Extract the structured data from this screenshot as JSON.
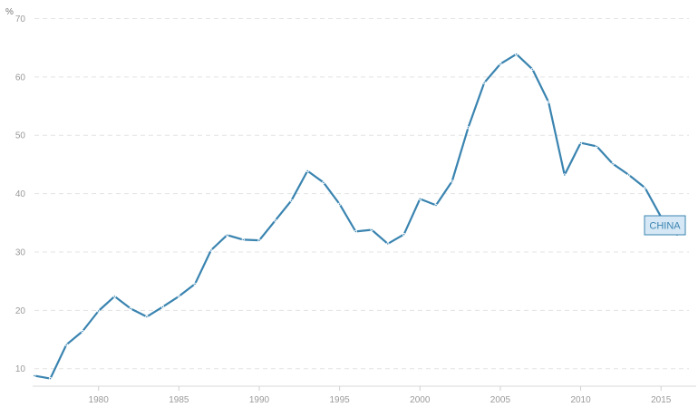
{
  "chart_data": {
    "type": "line",
    "unit_label": "%",
    "x": [
      1976,
      1977,
      1978,
      1979,
      1980,
      1981,
      1982,
      1983,
      1984,
      1985,
      1986,
      1987,
      1988,
      1989,
      1990,
      1991,
      1992,
      1993,
      1994,
      1995,
      1996,
      1997,
      1998,
      1999,
      2000,
      2001,
      2002,
      2003,
      2004,
      2005,
      2006,
      2007,
      2008,
      2009,
      2010,
      2011,
      2012,
      2013,
      2014,
      2015,
      2016
    ],
    "series": [
      {
        "name": "CHINA",
        "color": "#3a84b0",
        "values": [
          8.8,
          8.3,
          14.1,
          16.4,
          19.9,
          22.4,
          20.3,
          18.9,
          20.6,
          22.4,
          24.5,
          30.3,
          32.9,
          32.1,
          32.0,
          35.4,
          38.8,
          43.9,
          41.9,
          38.2,
          33.5,
          33.8,
          31.4,
          33.0,
          39.1,
          38.0,
          42.1,
          51.3,
          59.0,
          62.2,
          63.9,
          61.3,
          55.7,
          43.2,
          48.7,
          48.1,
          45.1,
          43.2,
          41.0,
          36.0,
          32.9
        ]
      }
    ],
    "x_ticks": [
      "1980",
      "1985",
      "1990",
      "1995",
      "2000",
      "2005",
      "2010",
      "2015"
    ],
    "x_tick_values": [
      1980,
      1985,
      1990,
      1995,
      2000,
      2005,
      2010,
      2015
    ],
    "y_ticks": [
      "10",
      "20",
      "30",
      "40",
      "50",
      "60",
      "70"
    ],
    "y_tick_values": [
      10,
      20,
      30,
      40,
      50,
      60,
      70
    ],
    "xlim": [
      1975.9,
      2017.3
    ],
    "ylim": [
      7,
      71
    ],
    "grid": "horizontal-dashed",
    "legend": "inline-end-label",
    "label_fill": "#d6e8f5"
  }
}
